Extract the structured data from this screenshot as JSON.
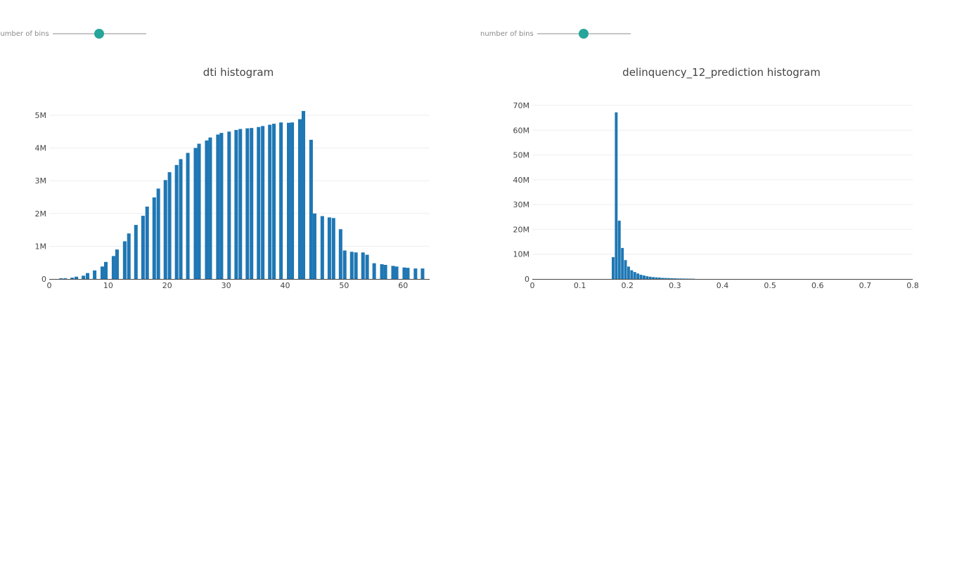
{
  "sliders": [
    {
      "label": "number of bins",
      "value_fraction": 0.5
    },
    {
      "label": "number of bins",
      "value_fraction": 0.5
    }
  ],
  "chart_data": [
    {
      "type": "bar",
      "title": "dti histogram",
      "xlabel": "",
      "ylabel": "",
      "xlim": [
        0,
        64.5
      ],
      "ylim": [
        0,
        5300000
      ],
      "x_ticks": [
        0,
        10,
        20,
        30,
        40,
        50,
        60
      ],
      "x_tick_labels": [
        "0",
        "10",
        "20",
        "30",
        "40",
        "50",
        "60"
      ],
      "y_ticks": [
        0,
        1000000,
        2000000,
        3000000,
        4000000,
        5000000
      ],
      "y_tick_labels": [
        "0",
        "1M",
        "2M",
        "3M",
        "4M",
        "5M"
      ],
      "bar_width": 0.6,
      "color": "#1f77b4",
      "grid": true,
      "x": [
        2,
        2.7,
        3.9,
        4.6,
        5.8,
        6.5,
        7.7,
        9.0,
        9.6,
        10.9,
        11.5,
        12.8,
        13.5,
        14.7,
        15.9,
        16.6,
        17.8,
        18.5,
        19.7,
        20.4,
        21.6,
        22.3,
        23.5,
        24.8,
        25.4,
        26.7,
        27.3,
        28.6,
        29.2,
        30.5,
        31.7,
        32.4,
        33.6,
        34.3,
        35.5,
        36.2,
        37.4,
        38.1,
        39.3,
        40.6,
        41.2,
        42.5,
        43.1,
        44.4,
        45.0,
        46.3,
        47.5,
        48.2,
        49.4,
        50.1,
        51.3,
        52.0,
        53.2,
        53.9,
        55.1,
        56.4,
        57.0,
        58.3,
        58.9,
        60.2,
        60.8,
        62.1,
        63.3
      ],
      "values": [
        20000,
        20000,
        40000,
        70000,
        100000,
        180000,
        260000,
        380000,
        520000,
        700000,
        900000,
        1150000,
        1390000,
        1650000,
        1930000,
        2210000,
        2490000,
        2760000,
        3020000,
        3260000,
        3480000,
        3660000,
        3850000,
        4000000,
        4130000,
        4230000,
        4320000,
        4410000,
        4460000,
        4500000,
        4550000,
        4580000,
        4600000,
        4610000,
        4640000,
        4670000,
        4710000,
        4740000,
        4780000,
        4770000,
        4780000,
        4880000,
        5130000,
        4250000,
        2000000,
        1920000,
        1880000,
        1860000,
        1520000,
        870000,
        830000,
        810000,
        810000,
        740000,
        480000,
        450000,
        430000,
        400000,
        380000,
        350000,
        340000,
        320000,
        320000
      ]
    },
    {
      "type": "bar",
      "title": "delinquency_12_prediction histogram",
      "xlabel": "",
      "ylabel": "",
      "xlim": [
        0,
        0.8
      ],
      "ylim": [
        0,
        70000000
      ],
      "x_ticks": [
        0,
        0.1,
        0.2,
        0.3,
        0.4,
        0.5,
        0.6,
        0.7,
        0.8
      ],
      "x_tick_labels": [
        "0",
        "0.1",
        "0.2",
        "0.3",
        "0.4",
        "0.5",
        "0.6",
        "0.7",
        "0.8"
      ],
      "y_ticks": [
        0,
        10000000,
        20000000,
        30000000,
        40000000,
        50000000,
        60000000,
        70000000
      ],
      "y_tick_labels": [
        "0",
        "10M",
        "20M",
        "30M",
        "40M",
        "50M",
        "60M",
        "70M"
      ],
      "bar_width": 0.0058,
      "color": "#1f77b4",
      "grid": true,
      "x": [
        0.17,
        0.1765,
        0.183,
        0.1895,
        0.196,
        0.2025,
        0.209,
        0.2155,
        0.222,
        0.2285,
        0.235,
        0.2415,
        0.248,
        0.2545,
        0.261,
        0.2675,
        0.274,
        0.2805,
        0.287,
        0.2935,
        0.3,
        0.3065,
        0.313,
        0.3195,
        0.326,
        0.3325,
        0.339
      ],
      "values": [
        8800000,
        67200000,
        23500000,
        12500000,
        7600000,
        5000000,
        3500000,
        2800000,
        2200000,
        1700000,
        1400000,
        1100000,
        900000,
        750000,
        650000,
        550000,
        450000,
        400000,
        350000,
        300000,
        250000,
        200000,
        180000,
        150000,
        130000,
        120000,
        100000
      ]
    }
  ]
}
